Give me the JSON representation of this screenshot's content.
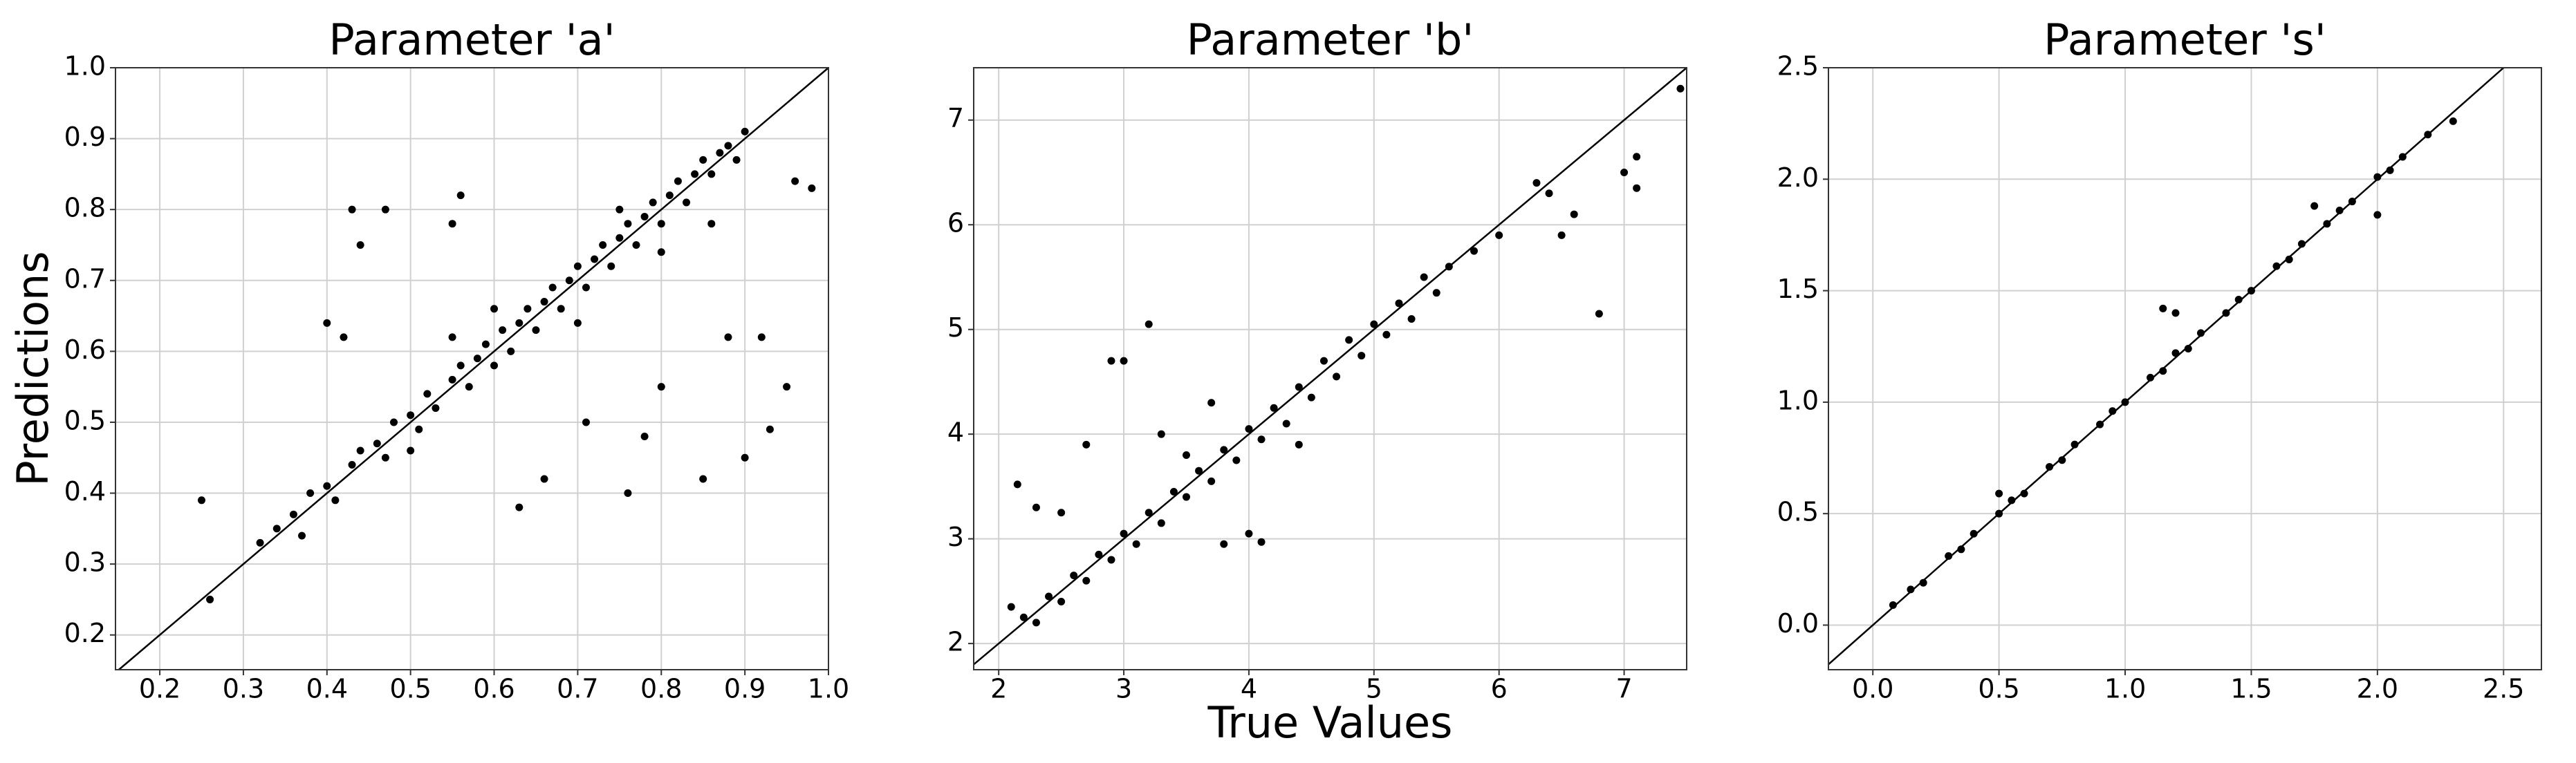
{
  "chart_data": [
    {
      "type": "scatter",
      "title": "Parameter 'a'",
      "y_label": "Predictions",
      "color": "#000000",
      "grid": true,
      "xlim": [
        0.147,
        1.0
      ],
      "ylim": [
        0.151,
        1.0
      ],
      "xticks": [
        0.2,
        0.3,
        0.4,
        0.5,
        0.6,
        0.7,
        0.8,
        0.9,
        {
          "value": 1.0,
          "label": "1.0"
        }
      ],
      "yticks": [
        0.2,
        0.3,
        0.4,
        0.5,
        0.6,
        0.7,
        0.8,
        0.9,
        {
          "value": 1.0,
          "label": "1.0"
        }
      ],
      "x": [
        0.32,
        0.34,
        0.36,
        0.37,
        0.38,
        0.4,
        0.41,
        0.43,
        0.44,
        0.46,
        0.47,
        0.48,
        0.5,
        0.51,
        0.52,
        0.53,
        0.55,
        0.56,
        0.57,
        0.58,
        0.59,
        0.6,
        0.61,
        0.62,
        0.63,
        0.64,
        0.65,
        0.66,
        0.67,
        0.68,
        0.69,
        0.7,
        0.71,
        0.72,
        0.73,
        0.74,
        0.75,
        0.76,
        0.77,
        0.78,
        0.79,
        0.8,
        0.81,
        0.82,
        0.83,
        0.84,
        0.85,
        0.86,
        0.87,
        0.88,
        0.89,
        0.9,
        0.5,
        0.6,
        0.7,
        0.75,
        0.55,
        0.8,
        0.25,
        0.26,
        0.43,
        0.47,
        0.56,
        0.44,
        0.85,
        0.9,
        0.96,
        0.98,
        0.63,
        0.71,
        0.78,
        0.93,
        0.66,
        0.88,
        0.92,
        0.8,
        0.95,
        0.4,
        0.42,
        0.55,
        0.76,
        0.86
      ],
      "y": [
        0.33,
        0.35,
        0.37,
        0.34,
        0.4,
        0.41,
        0.39,
        0.44,
        0.46,
        0.47,
        0.45,
        0.5,
        0.51,
        0.49,
        0.54,
        0.52,
        0.56,
        0.58,
        0.55,
        0.59,
        0.61,
        0.58,
        0.63,
        0.6,
        0.64,
        0.66,
        0.63,
        0.67,
        0.69,
        0.66,
        0.7,
        0.72,
        0.69,
        0.73,
        0.75,
        0.72,
        0.76,
        0.78,
        0.75,
        0.79,
        0.81,
        0.78,
        0.82,
        0.84,
        0.81,
        0.85,
        0.87,
        0.85,
        0.88,
        0.89,
        0.87,
        0.91,
        0.46,
        0.66,
        0.64,
        0.8,
        0.62,
        0.74,
        0.39,
        0.25,
        0.8,
        0.8,
        0.82,
        0.75,
        0.42,
        0.45,
        0.84,
        0.83,
        0.38,
        0.5,
        0.48,
        0.49,
        0.42,
        0.62,
        0.62,
        0.55,
        0.55,
        0.64,
        0.62,
        0.78,
        0.4,
        0.78
      ]
    },
    {
      "type": "scatter",
      "title": "Parameter 'b'",
      "x_label": "True Values",
      "color": "#000000",
      "grid": true,
      "xlim": [
        1.8,
        7.5
      ],
      "ylim": [
        1.75,
        7.5
      ],
      "xticks": [
        2,
        3,
        4,
        5,
        6,
        7
      ],
      "yticks": [
        2,
        3,
        4,
        5,
        6,
        7
      ],
      "x": [
        2.2,
        2.3,
        2.4,
        2.5,
        2.6,
        2.7,
        2.8,
        2.9,
        3.0,
        3.1,
        3.2,
        3.3,
        3.4,
        3.5,
        3.6,
        3.7,
        3.8,
        3.9,
        4.0,
        4.1,
        4.2,
        4.3,
        4.4,
        4.5,
        4.6,
        4.7,
        4.8,
        4.9,
        5.0,
        5.1,
        5.2,
        5.3,
        5.4,
        5.5,
        5.6,
        5.8,
        6.0,
        6.3,
        6.5,
        2.1,
        2.15,
        2.3,
        2.5,
        2.7,
        2.9,
        3.0,
        3.2,
        3.3,
        3.5,
        3.7,
        3.8,
        4.0,
        4.1,
        4.4,
        6.8,
        7.0,
        7.1,
        7.1,
        7.45,
        6.4,
        6.6
      ],
      "y": [
        2.25,
        2.2,
        2.45,
        2.4,
        2.65,
        2.6,
        2.85,
        2.8,
        3.05,
        2.95,
        3.25,
        3.15,
        3.45,
        3.4,
        3.65,
        3.55,
        3.85,
        3.75,
        4.05,
        3.95,
        4.25,
        4.1,
        4.45,
        4.35,
        4.7,
        4.55,
        4.9,
        4.75,
        5.05,
        4.95,
        5.25,
        5.1,
        5.5,
        5.35,
        5.6,
        5.75,
        5.9,
        6.4,
        5.9,
        2.35,
        3.52,
        3.3,
        3.25,
        3.9,
        4.7,
        4.7,
        5.05,
        4.0,
        3.8,
        4.3,
        2.95,
        3.05,
        2.97,
        3.9,
        5.15,
        6.5,
        6.65,
        6.35,
        7.3,
        6.3,
        6.1
      ]
    },
    {
      "type": "scatter",
      "title": "Parameter 's'",
      "color": "#000000",
      "grid": true,
      "xlim": [
        -0.176,
        2.65
      ],
      "ylim": [
        -0.2,
        2.5
      ],
      "xticks": [
        {
          "value": 0,
          "label": "0.0"
        },
        0.5,
        {
          "value": 1,
          "label": "1.0"
        },
        1.5,
        {
          "value": 2,
          "label": "2.0"
        },
        2.5
      ],
      "yticks": [
        {
          "value": 0,
          "label": "0.0"
        },
        0.5,
        {
          "value": 1,
          "label": "1.0"
        },
        1.5,
        {
          "value": 2,
          "label": "2.0"
        },
        2.5
      ],
      "x": [
        0.08,
        0.15,
        0.2,
        0.3,
        0.35,
        0.4,
        0.5,
        0.55,
        0.6,
        0.7,
        0.75,
        0.8,
        0.9,
        0.95,
        1.0,
        1.1,
        1.15,
        1.2,
        1.25,
        1.3,
        1.4,
        1.45,
        1.5,
        1.6,
        1.65,
        1.7,
        1.8,
        1.85,
        1.9,
        2.0,
        2.05,
        2.1,
        2.2,
        2.3,
        1.15,
        1.2,
        0.5,
        1.75,
        2.0
      ],
      "y": [
        0.09,
        0.16,
        0.19,
        0.31,
        0.34,
        0.41,
        0.5,
        0.56,
        0.59,
        0.71,
        0.74,
        0.81,
        0.9,
        0.96,
        1.0,
        1.11,
        1.14,
        1.22,
        1.24,
        1.31,
        1.4,
        1.46,
        1.5,
        1.61,
        1.64,
        1.71,
        1.8,
        1.86,
        1.9,
        2.01,
        2.04,
        2.1,
        2.2,
        2.26,
        1.42,
        1.4,
        0.59,
        1.88,
        1.84
      ]
    }
  ]
}
